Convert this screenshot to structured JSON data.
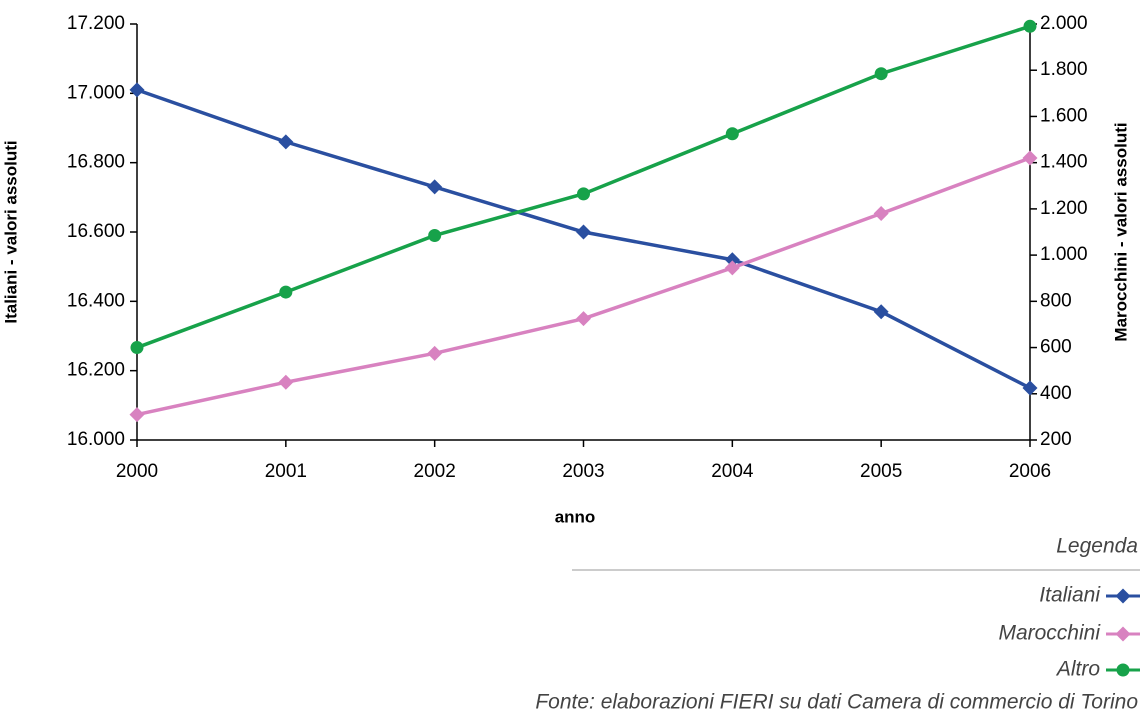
{
  "chart_data": {
    "type": "line",
    "x_label": "anno",
    "y_label": "Italiani - valori assoluti",
    "y2_label": "Marocchini - valori assoluti",
    "categories": [
      "2000",
      "2001",
      "2002",
      "2003",
      "2004",
      "2005",
      "2006"
    ],
    "ylim": [
      16000,
      17200
    ],
    "yticks": [
      {
        "value": 16000,
        "label": "16.000"
      },
      {
        "value": 16200,
        "label": "16.200"
      },
      {
        "value": 16400,
        "label": "16.400"
      },
      {
        "value": 16600,
        "label": "16.600"
      },
      {
        "value": 16800,
        "label": "16.800"
      },
      {
        "value": 17000,
        "label": "17.000"
      },
      {
        "value": 17200,
        "label": "17.200"
      }
    ],
    "y2lim": [
      200,
      2000
    ],
    "y2ticks": [
      200,
      400,
      600,
      800,
      {
        "value": 1000,
        "label": "1.000"
      },
      {
        "value": 1200,
        "label": "1.200"
      },
      {
        "value": 1400,
        "label": "1.400"
      },
      {
        "value": 1600,
        "label": "1.600"
      },
      {
        "value": 1800,
        "label": "1.800"
      },
      {
        "value": 2000,
        "label": "2.000"
      }
    ],
    "series": [
      {
        "name": "Italiani",
        "color": "#2a4fa0",
        "marker": "diamond",
        "axis": "y",
        "values": [
          17010,
          16860,
          16730,
          16600,
          16520,
          16370,
          16150
        ]
      },
      {
        "name": "Marocchini",
        "color": "#d882c0",
        "marker": "diamond",
        "axis": "y2",
        "values": [
          310,
          450,
          575,
          725,
          945,
          1180,
          1420
        ]
      },
      {
        "name": "Altro",
        "color": "#17a24a",
        "marker": "circle",
        "axis": "y2",
        "values": [
          600,
          840,
          1085,
          1265,
          1525,
          1785,
          1990
        ]
      }
    ],
    "legend_title": "Legenda",
    "legend_position": "bottom-right",
    "source": "Fonte: elaborazioni FIERI su dati Camera di commercio di Torino"
  }
}
